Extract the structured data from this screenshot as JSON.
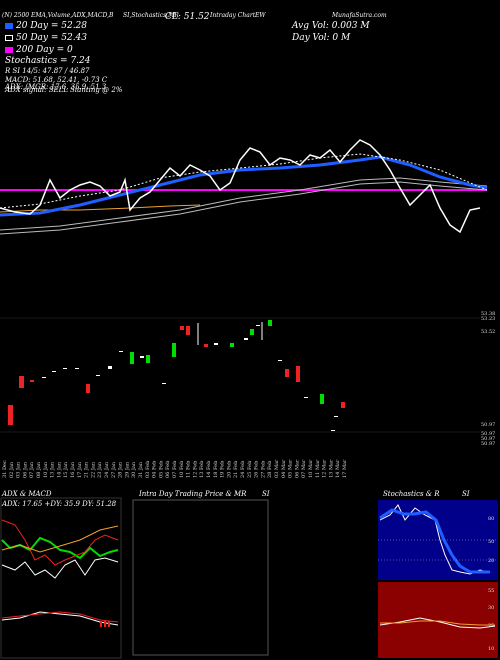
{
  "header": {
    "line1": "(N) 2500 EMA,Volume,ADX,MACD,B",
    "stochastics": "SI,Stochastics,MR",
    "cl": "CL: 51.52",
    "intraday": "Intraday Chart",
    "marketintel": "MunafaSutra.com",
    "ticker": "EW"
  },
  "legend": [
    {
      "label": "20  Day = 52.28",
      "color": "#1f5fff"
    },
    {
      "label": "50  Day = 52.43",
      "color": "#ffffff"
    },
    {
      "label": "200  Day = 0",
      "color": "#ff00ff"
    }
  ],
  "indicators": {
    "stoch": "Stochastics = 7.24",
    "rsi": "R                    SI 14/5: 47.87 / 46.87",
    "macd": "MACD: 51.68,  52.41,  -0.73   C",
    "adx": "ADX:                                       (MGR: 17.6,  35.9,  51.3",
    "adx_signal": "ADX  signal: SELL  Slanting @ 2%"
  },
  "volume": {
    "avg": "Avg Vol: 0.003  M",
    "day": "Day Vol: 0    M"
  },
  "price_scale": [
    "53.38",
    "53.23",
    "53.52",
    "50.97",
    "50.97",
    "50.97",
    "50.97"
  ],
  "dates": [
    "31 Dec",
    "02 Jan",
    "03 Jan",
    "06 Jan",
    "07 Jan",
    "08 Jan",
    "10 Jan",
    "13 Jan",
    "14 Jan",
    "15 Jan",
    "16 Jan",
    "17 Jan",
    "21 Jan",
    "22 Jan",
    "23 Jan",
    "24 Jan",
    "27 Jan",
    "28 Jan",
    "29 Jan",
    "30 Jan",
    "31 Jan",
    "03 Feb",
    "04 Feb",
    "05 Feb",
    "06 Feb",
    "07 Feb",
    "10 Feb",
    "11 Feb",
    "12 Feb",
    "13 Feb",
    "14 Feb",
    "18 Feb",
    "19 Feb",
    "20 Feb",
    "21 Feb",
    "24 Feb",
    "25 Feb",
    "26 Feb",
    "27 Feb",
    "28 Feb",
    "03 Mar",
    "04 Mar",
    "05 Mar",
    "06 Mar",
    "07 Mar",
    "10 Mar",
    "11 Mar",
    "12 Mar",
    "13 Mar",
    "14 Mar",
    "17 Mar"
  ],
  "panels": {
    "adx_title": "ADX  & MACD",
    "adx_readout": "ADX: 17.65  +DY: 35.9  DY: 51.28",
    "intraday_title": "Intra  Day Trading Price  & MR",
    "intraday_si": "SI",
    "stoch_title": "Stochastics & R",
    "stoch_si": "SI"
  },
  "stoch_scale": [
    "80",
    "50",
    "20"
  ],
  "rsi_scale": [
    "55",
    "30",
    "25",
    "10"
  ],
  "colors": {
    "ema20": "#1f5fff",
    "ema200": "#ff00ff",
    "up": "#00dd00",
    "down": "#ee2222",
    "stoch_bg": "#00008b",
    "rsi_bg": "#8b0000"
  }
}
